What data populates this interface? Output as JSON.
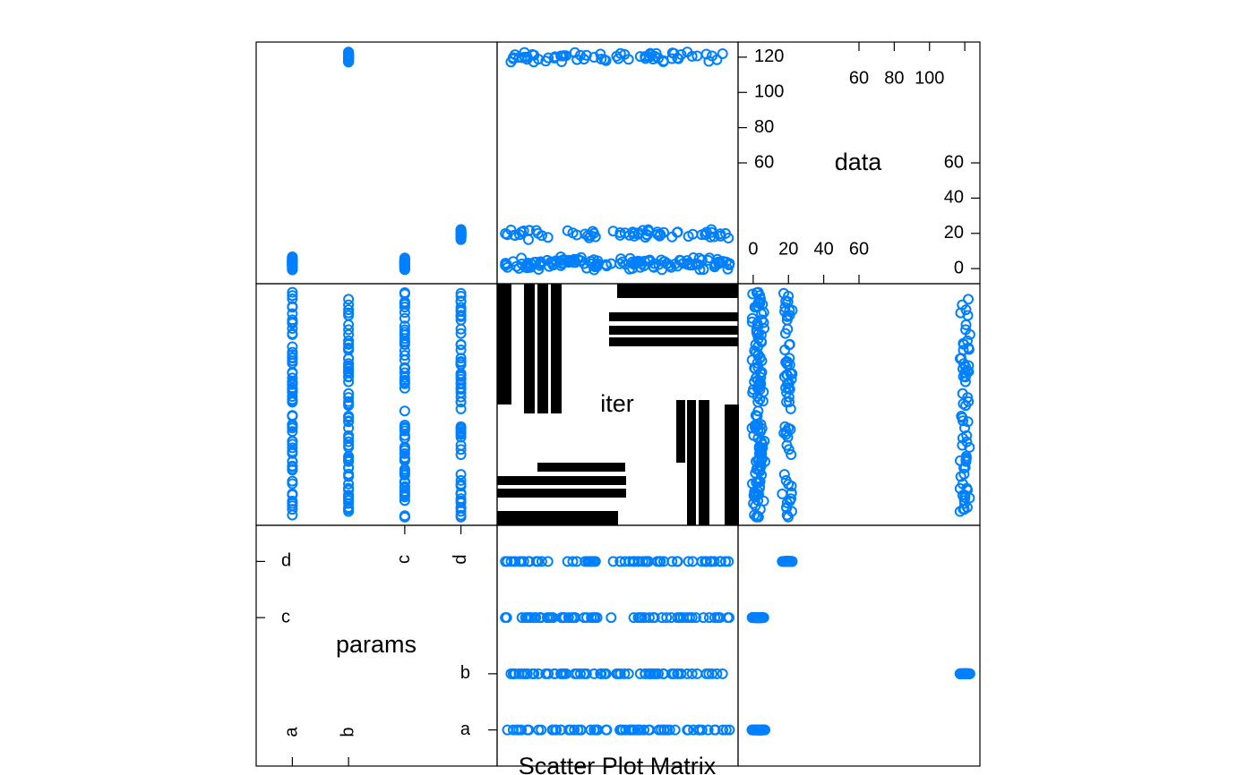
{
  "chart_data": {
    "type": "scatter",
    "subtype": "scatter-plot-matrix",
    "xlabel": "Scatter Plot Matrix",
    "variables": [
      "params",
      "iter",
      "data"
    ],
    "point_color": "#0080FF",
    "label_color": "#000000",
    "params": {
      "levels": [
        "a",
        "b",
        "c",
        "d"
      ],
      "data_centers": {
        "a": 3,
        "b": 120,
        "c": 3,
        "d": 20
      },
      "data_spread": {
        "a": 2.5,
        "b": 2.0,
        "c": 2.5,
        "d": 2.0
      }
    },
    "iter": {
      "range": [
        1,
        1000
      ],
      "label_in_cells": true
    },
    "data": {
      "lower_ticks": [
        0,
        20,
        40,
        60
      ],
      "lower_tick_labels": [
        "0",
        "20",
        "40",
        "60"
      ],
      "upper_ticks": [
        60,
        80,
        100,
        120
      ],
      "upper_tick_labels": [
        "60",
        "80",
        "100",
        "120"
      ],
      "range": [
        -4,
        124
      ]
    },
    "axis_ticks": {
      "params_left": [
        "c",
        "d"
      ],
      "params_bottom": [
        "a",
        "b"
      ],
      "params_right": [
        "a",
        "b"
      ],
      "params_top": [
        "c",
        "d"
      ]
    },
    "grid": false,
    "legend": "none"
  }
}
